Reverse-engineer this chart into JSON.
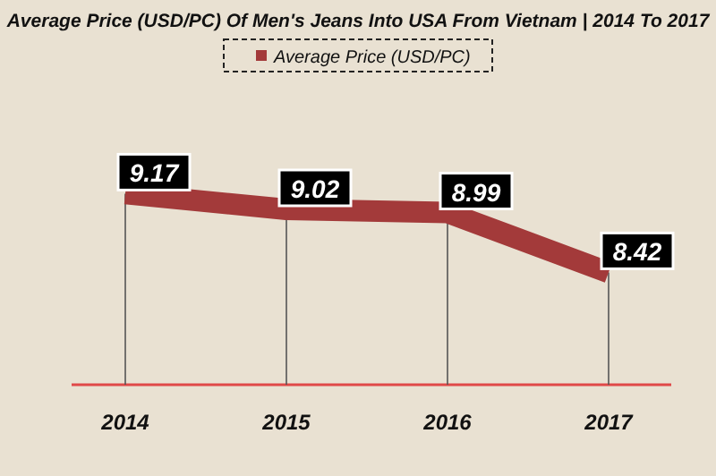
{
  "chart_data": {
    "type": "line",
    "title": "Average Price (USD/PC) Of Men's Jeans Into USA From Vietnam | 2014 To 2017",
    "categories": [
      "2014",
      "2015",
      "2016",
      "2017"
    ],
    "series": [
      {
        "name": "Average Price (USD/PC)",
        "color": "#a33a3a",
        "values": [
          9.17,
          9.02,
          8.99,
          8.42
        ]
      }
    ],
    "data_labels": true,
    "legend": "top",
    "grid": "x",
    "marker": "none"
  }
}
